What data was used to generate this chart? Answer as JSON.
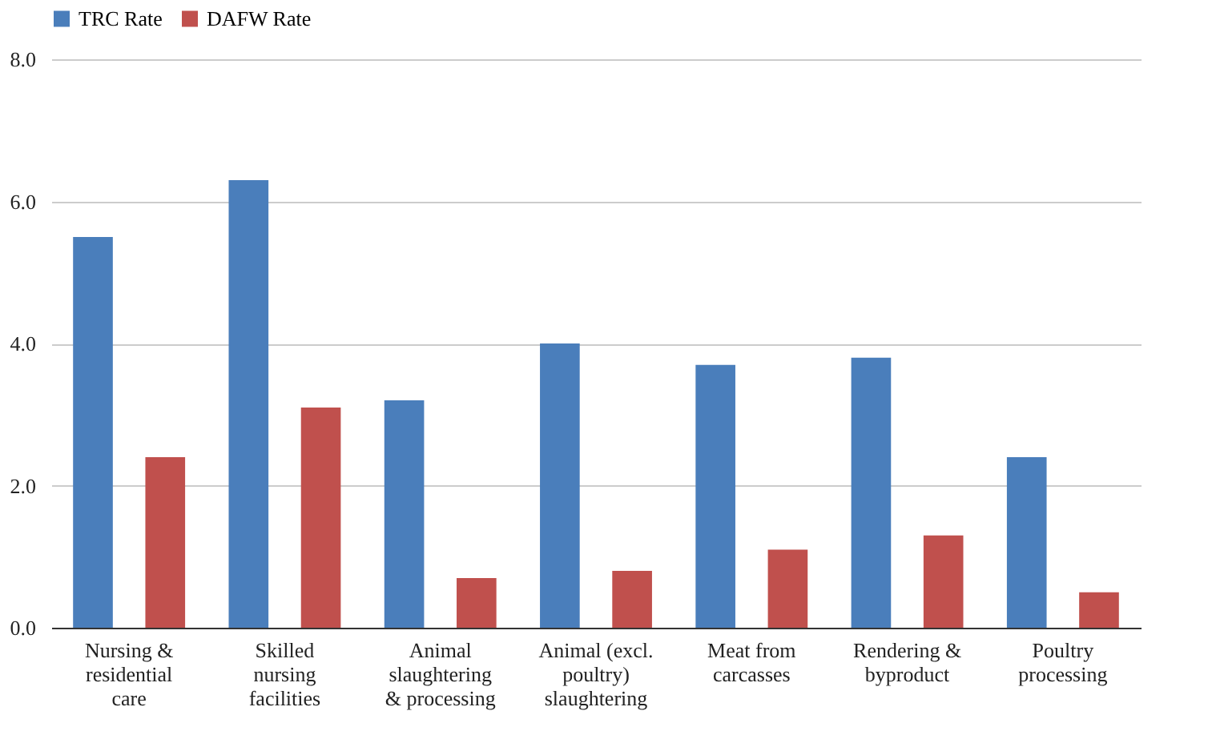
{
  "chart_data": {
    "type": "bar",
    "categories": [
      "Nursing & residential care",
      "Skilled nursing facilities",
      "Animal slaughtering & processing",
      "Animal (excl. poultry) slaughtering",
      "Meat from carcasses",
      "Rendering & byproduct",
      "Poultry processing"
    ],
    "series": [
      {
        "name": "TRC Rate",
        "color": "#4a7ebb",
        "values": [
          5.5,
          6.3,
          3.2,
          4.0,
          3.7,
          3.8,
          2.4
        ]
      },
      {
        "name": "DAFW Rate",
        "color": "#c0504d",
        "values": [
          2.4,
          3.1,
          0.7,
          0.8,
          1.1,
          1.3,
          0.5
        ]
      }
    ],
    "ylim": [
      0,
      8
    ],
    "yticks": [
      {
        "value": 0,
        "label": "0.0"
      },
      {
        "value": 2,
        "label": "2.0"
      },
      {
        "value": 4,
        "label": "4.0"
      },
      {
        "value": 6,
        "label": "6.0"
      },
      {
        "value": 8,
        "label": "8.0"
      }
    ],
    "grid": "y",
    "legend": "top"
  }
}
